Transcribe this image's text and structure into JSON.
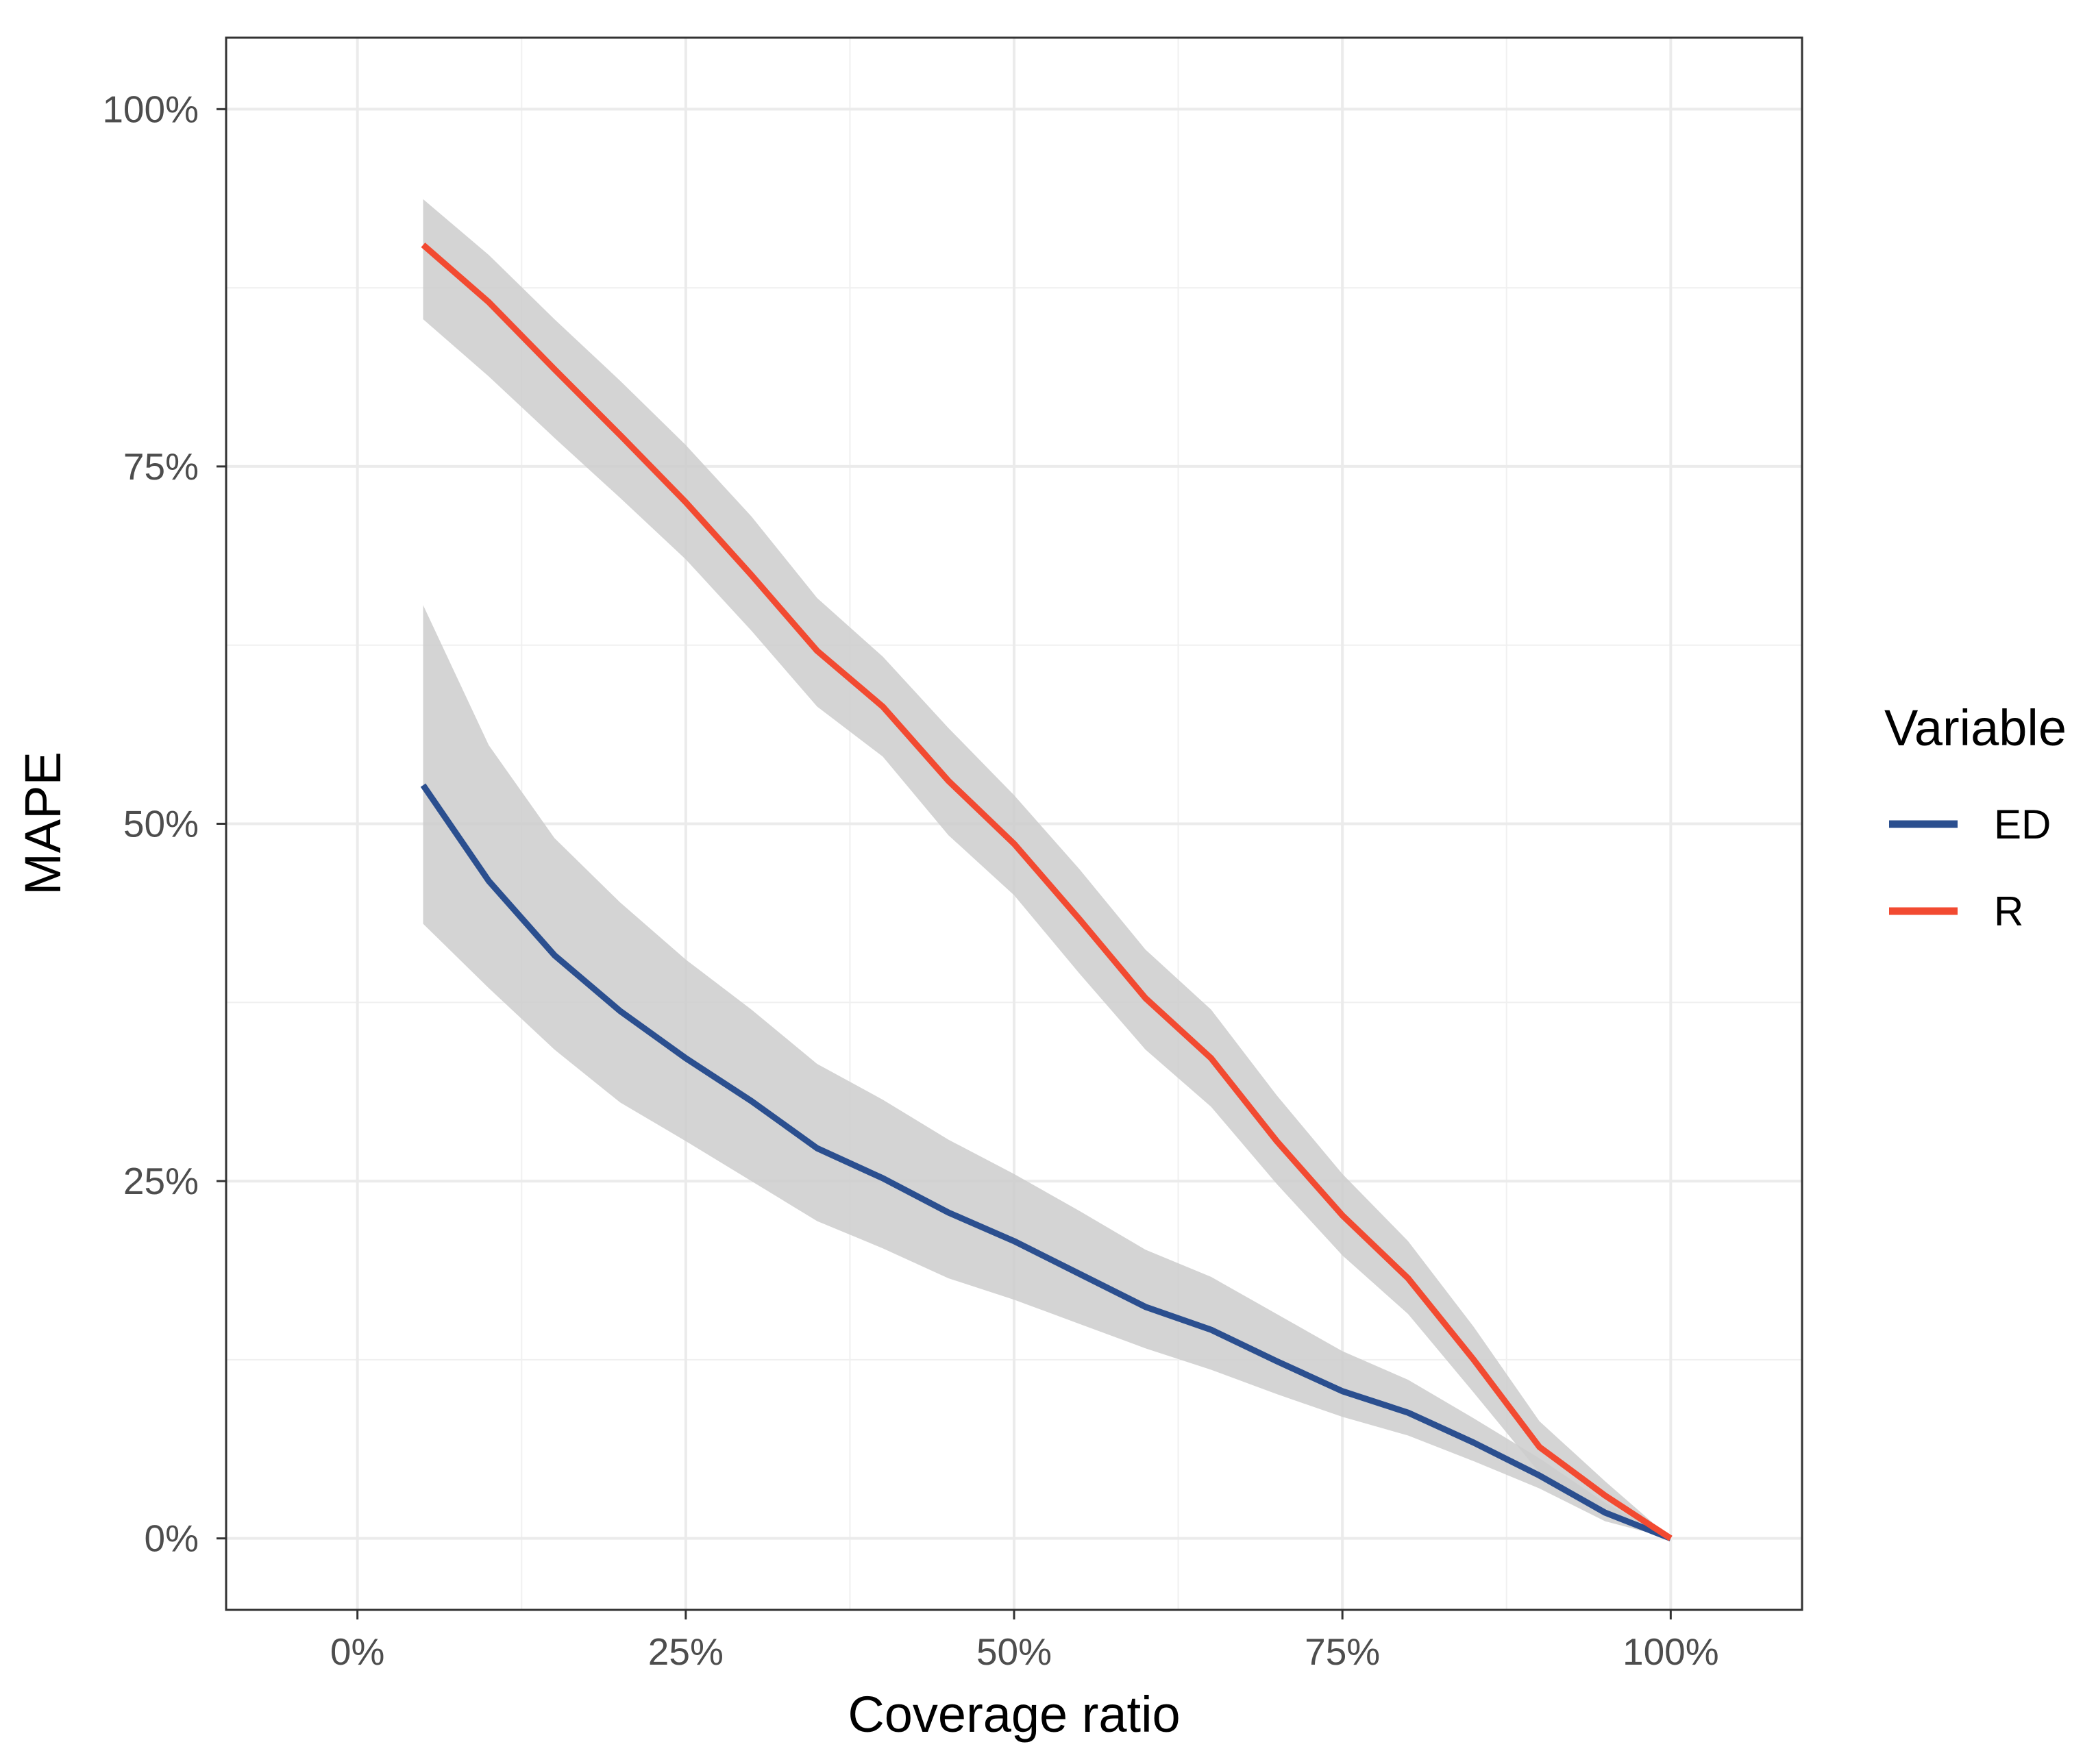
{
  "chart_data": {
    "type": "line",
    "title": "",
    "xlabel": "Coverage ratio",
    "ylabel": "MAPE",
    "xlim": [
      -0.1,
      1.1
    ],
    "ylim": [
      -0.05,
      1.05
    ],
    "x_ticks": [
      0,
      0.25,
      0.5,
      0.75,
      1
    ],
    "x_tick_labels": [
      "0%",
      "25%",
      "50%",
      "75%",
      "100%"
    ],
    "y_ticks": [
      0,
      0.25,
      0.5,
      0.75,
      1
    ],
    "y_tick_labels": [
      "0%",
      "25%",
      "50%",
      "75%",
      "100%"
    ],
    "grid": true,
    "legend": {
      "title": "Variable",
      "position": "right"
    },
    "x": [
      0.05,
      0.1,
      0.15,
      0.2,
      0.25,
      0.3,
      0.35,
      0.4,
      0.45,
      0.5,
      0.55,
      0.6,
      0.65,
      0.7,
      0.75,
      0.8,
      0.85,
      0.9,
      0.95,
      1.0
    ],
    "series": [
      {
        "name": "ED",
        "color": "#2b4f8f",
        "values": [
          0.527,
          0.46,
          0.408,
          0.369,
          0.336,
          0.306,
          0.273,
          0.252,
          0.228,
          0.208,
          0.185,
          0.162,
          0.146,
          0.124,
          0.103,
          0.088,
          0.067,
          0.044,
          0.018,
          0.0
        ],
        "lower": [
          0.43,
          0.385,
          0.342,
          0.305,
          0.278,
          0.25,
          0.222,
          0.203,
          0.182,
          0.167,
          0.15,
          0.133,
          0.118,
          0.101,
          0.085,
          0.072,
          0.054,
          0.035,
          0.012,
          0.0
        ],
        "upper": [
          0.653,
          0.555,
          0.49,
          0.445,
          0.405,
          0.37,
          0.332,
          0.307,
          0.279,
          0.255,
          0.229,
          0.202,
          0.183,
          0.157,
          0.131,
          0.111,
          0.084,
          0.056,
          0.025,
          0.0
        ]
      },
      {
        "name": "R",
        "color": "#f24a31",
        "values": [
          0.905,
          0.865,
          0.818,
          0.772,
          0.725,
          0.674,
          0.621,
          0.582,
          0.53,
          0.486,
          0.433,
          0.378,
          0.336,
          0.278,
          0.226,
          0.182,
          0.125,
          0.064,
          0.03,
          0.0
        ],
        "lower": [
          0.853,
          0.813,
          0.77,
          0.728,
          0.685,
          0.635,
          0.582,
          0.547,
          0.492,
          0.45,
          0.395,
          0.342,
          0.302,
          0.248,
          0.198,
          0.157,
          0.102,
          0.046,
          0.02,
          0.0
        ],
        "upper": [
          0.937,
          0.898,
          0.853,
          0.81,
          0.765,
          0.715,
          0.658,
          0.617,
          0.567,
          0.52,
          0.468,
          0.412,
          0.37,
          0.31,
          0.255,
          0.208,
          0.148,
          0.082,
          0.04,
          0.0
        ]
      }
    ]
  }
}
